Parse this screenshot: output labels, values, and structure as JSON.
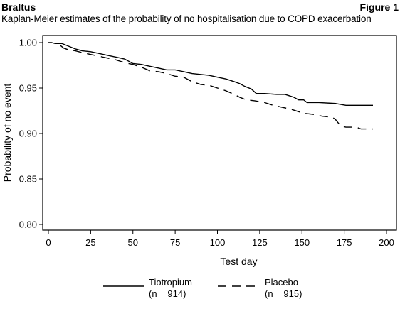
{
  "header": {
    "left": "Braltus",
    "right": "Figure 1"
  },
  "subtitle": "Kaplan-Meier estimates of the probability of no hospitalisation due to COPD exacerbation",
  "chart_data": {
    "type": "line",
    "title": "Kaplan-Meier estimates of the probability of no hospitalisation due to COPD exacerbation",
    "xlabel": "Test day",
    "ylabel": "Probability of no event",
    "xlim": [
      0,
      200
    ],
    "ylim": [
      0.8,
      1.0
    ],
    "x_ticks": [
      0,
      25,
      50,
      75,
      100,
      125,
      150,
      175,
      200
    ],
    "y_ticks": [
      0.8,
      0.85,
      0.9,
      0.95,
      1.0
    ],
    "x_tick_labels": [
      "0",
      "25",
      "50",
      "75",
      "100",
      "125",
      "150",
      "175",
      "200"
    ],
    "y_tick_labels": [
      "0.80",
      "0.85",
      "0.90",
      "0.95",
      "1.00"
    ],
    "grid": false,
    "legend_position": "bottom",
    "series": [
      {
        "name": "Tiotropium",
        "n_label": "(n = 914)",
        "style": "solid",
        "color": "#000000",
        "points": [
          [
            0,
            1.0
          ],
          [
            2,
            1.0
          ],
          [
            4,
            0.999
          ],
          [
            8,
            0.999
          ],
          [
            12,
            0.996
          ],
          [
            16,
            0.993
          ],
          [
            20,
            0.991
          ],
          [
            25,
            0.99
          ],
          [
            30,
            0.988
          ],
          [
            35,
            0.986
          ],
          [
            40,
            0.984
          ],
          [
            45,
            0.982
          ],
          [
            50,
            0.977
          ],
          [
            55,
            0.976
          ],
          [
            60,
            0.974
          ],
          [
            65,
            0.972
          ],
          [
            70,
            0.97
          ],
          [
            75,
            0.97
          ],
          [
            80,
            0.968
          ],
          [
            85,
            0.966
          ],
          [
            90,
            0.965
          ],
          [
            95,
            0.964
          ],
          [
            100,
            0.962
          ],
          [
            105,
            0.96
          ],
          [
            110,
            0.957
          ],
          [
            113,
            0.955
          ],
          [
            116,
            0.952
          ],
          [
            120,
            0.949
          ],
          [
            123,
            0.944
          ],
          [
            128,
            0.944
          ],
          [
            135,
            0.943
          ],
          [
            140,
            0.943
          ],
          [
            145,
            0.94
          ],
          [
            148,
            0.937
          ],
          [
            151,
            0.937
          ],
          [
            153,
            0.934
          ],
          [
            160,
            0.934
          ],
          [
            170,
            0.933
          ],
          [
            173,
            0.932
          ],
          [
            176,
            0.931
          ],
          [
            180,
            0.931
          ],
          [
            185,
            0.931
          ],
          [
            192,
            0.931
          ]
        ]
      },
      {
        "name": "Placebo",
        "n_label": "(n = 915)",
        "style": "dashed",
        "color": "#000000",
        "points": [
          [
            7,
            0.997
          ],
          [
            9,
            0.994
          ],
          [
            12,
            0.992
          ],
          [
            16,
            0.991
          ],
          [
            20,
            0.989
          ],
          [
            25,
            0.987
          ],
          [
            30,
            0.985
          ],
          [
            35,
            0.983
          ],
          [
            40,
            0.981
          ],
          [
            45,
            0.978
          ],
          [
            50,
            0.976
          ],
          [
            53,
            0.974
          ],
          [
            55,
            0.973
          ],
          [
            60,
            0.969
          ],
          [
            65,
            0.968
          ],
          [
            70,
            0.966
          ],
          [
            75,
            0.963
          ],
          [
            80,
            0.962
          ],
          [
            85,
            0.957
          ],
          [
            90,
            0.954
          ],
          [
            95,
            0.953
          ],
          [
            100,
            0.95
          ],
          [
            105,
            0.947
          ],
          [
            110,
            0.943
          ],
          [
            113,
            0.94
          ],
          [
            117,
            0.937
          ],
          [
            122,
            0.936
          ],
          [
            128,
            0.934
          ],
          [
            133,
            0.931
          ],
          [
            138,
            0.929
          ],
          [
            143,
            0.927
          ],
          [
            148,
            0.924
          ],
          [
            152,
            0.922
          ],
          [
            157,
            0.921
          ],
          [
            162,
            0.919
          ],
          [
            168,
            0.918
          ],
          [
            170,
            0.915
          ],
          [
            173,
            0.908
          ],
          [
            176,
            0.907
          ],
          [
            182,
            0.907
          ],
          [
            185,
            0.905
          ],
          [
            192,
            0.905
          ]
        ]
      }
    ]
  }
}
